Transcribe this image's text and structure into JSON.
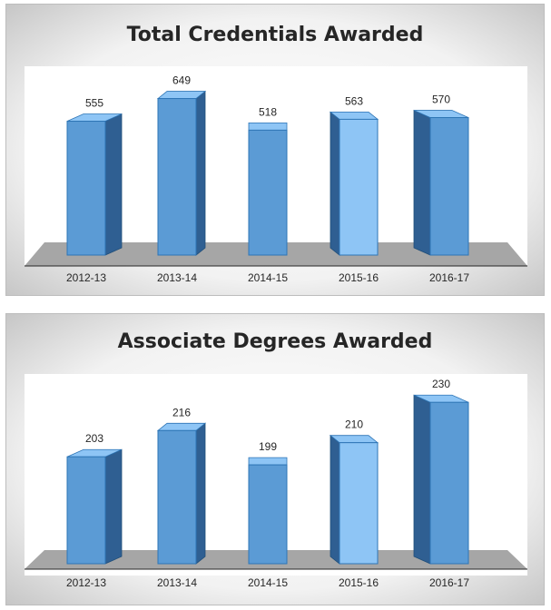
{
  "chart_data": [
    {
      "type": "bar",
      "title": "Total Credentials Awarded",
      "categories": [
        "2012-13",
        "2013-14",
        "2014-15",
        "2015-16",
        "2016-17"
      ],
      "values": [
        555,
        649,
        518,
        563,
        570
      ],
      "data_labels": [
        "555",
        "649",
        "518",
        "563",
        "570"
      ],
      "ylim": [
        0,
        700
      ],
      "grid": false,
      "legend": "none",
      "colors": {
        "bar": "#5b9bd5",
        "bar_light": "#8ec5f5",
        "bar_side": "#2f5f92",
        "floor": "#a6a6a6"
      }
    },
    {
      "type": "bar",
      "title": "Associate Degrees Awarded",
      "categories": [
        "2012-13",
        "2013-14",
        "2014-15",
        "2015-16",
        "2016-17"
      ],
      "values": [
        203,
        216,
        199,
        210,
        230
      ],
      "data_labels": [
        "203",
        "216",
        "199",
        "210",
        "230"
      ],
      "ylim": [
        150,
        240
      ],
      "grid": false,
      "legend": "none",
      "colors": {
        "bar": "#5b9bd5",
        "bar_light": "#8ec5f5",
        "bar_side": "#2f5f92",
        "floor": "#a6a6a6"
      }
    }
  ]
}
